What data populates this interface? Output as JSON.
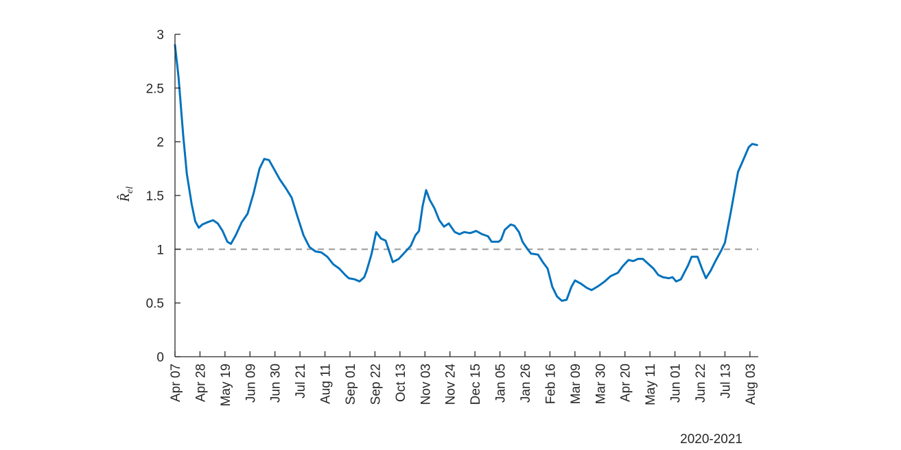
{
  "chart_data": {
    "type": "line",
    "ylabel": "R̂el",
    "year_caption": "2020-2021",
    "ylim": [
      0,
      3
    ],
    "yticks": [
      0,
      0.5,
      1,
      1.5,
      2,
      2.5,
      3
    ],
    "ytick_labels": [
      "0",
      "0.5",
      "1",
      "1.5",
      "2",
      "2.5",
      "3"
    ],
    "xlim": [
      "2020-04-07",
      "2021-08-10"
    ],
    "xticks": [
      "2020-04-07",
      "2020-04-28",
      "2020-05-19",
      "2020-06-09",
      "2020-06-30",
      "2020-07-21",
      "2020-08-11",
      "2020-09-01",
      "2020-09-22",
      "2020-10-13",
      "2020-11-03",
      "2020-11-24",
      "2020-12-15",
      "2021-01-05",
      "2021-01-26",
      "2021-02-16",
      "2021-03-09",
      "2021-03-30",
      "2021-04-20",
      "2021-05-11",
      "2021-06-01",
      "2021-06-22",
      "2021-07-13",
      "2021-08-03"
    ],
    "xtick_labels": [
      "Apr 07",
      "Apr 28",
      "May 19",
      "Jun 09",
      "Jun 30",
      "Jul 21",
      "Aug 11",
      "Sep 01",
      "Sep 22",
      "Oct 13",
      "Nov 03",
      "Nov 24",
      "Dec 15",
      "Jan 05",
      "Jan 26",
      "Feb 16",
      "Mar 09",
      "Mar 30",
      "Apr 20",
      "May 11",
      "Jun 01",
      "Jun 22",
      "Jul 13",
      "Aug 03"
    ],
    "grid": false,
    "reference_line": {
      "y": 1,
      "style": "dashed",
      "color": "#999999"
    },
    "series": [
      {
        "color": "#0072BD",
        "points": [
          [
            "2020-04-07",
            2.9
          ],
          [
            "2020-04-10",
            2.6
          ],
          [
            "2020-04-14",
            2.05
          ],
          [
            "2020-04-17",
            1.7
          ],
          [
            "2020-04-21",
            1.42
          ],
          [
            "2020-04-24",
            1.26
          ],
          [
            "2020-04-27",
            1.2
          ],
          [
            "2020-04-30",
            1.23
          ],
          [
            "2020-05-04",
            1.25
          ],
          [
            "2020-05-09",
            1.27
          ],
          [
            "2020-05-13",
            1.24
          ],
          [
            "2020-05-17",
            1.17
          ],
          [
            "2020-05-21",
            1.07
          ],
          [
            "2020-05-24",
            1.05
          ],
          [
            "2020-05-28",
            1.13
          ],
          [
            "2020-06-02",
            1.25
          ],
          [
            "2020-06-07",
            1.33
          ],
          [
            "2020-06-12",
            1.52
          ],
          [
            "2020-06-17",
            1.75
          ],
          [
            "2020-06-21",
            1.84
          ],
          [
            "2020-06-25",
            1.83
          ],
          [
            "2020-06-29",
            1.75
          ],
          [
            "2020-07-04",
            1.65
          ],
          [
            "2020-07-09",
            1.57
          ],
          [
            "2020-07-14",
            1.48
          ],
          [
            "2020-07-19",
            1.3
          ],
          [
            "2020-07-24",
            1.13
          ],
          [
            "2020-07-29",
            1.02
          ],
          [
            "2020-08-03",
            0.98
          ],
          [
            "2020-08-08",
            0.97
          ],
          [
            "2020-08-13",
            0.93
          ],
          [
            "2020-08-18",
            0.86
          ],
          [
            "2020-08-23",
            0.82
          ],
          [
            "2020-08-28",
            0.76
          ],
          [
            "2020-08-31",
            0.73
          ],
          [
            "2020-09-05",
            0.72
          ],
          [
            "2020-09-09",
            0.7
          ],
          [
            "2020-09-13",
            0.74
          ],
          [
            "2020-09-15",
            0.8
          ],
          [
            "2020-09-19",
            0.95
          ],
          [
            "2020-09-23",
            1.16
          ],
          [
            "2020-09-27",
            1.1
          ],
          [
            "2020-10-01",
            1.08
          ],
          [
            "2020-10-07",
            0.88
          ],
          [
            "2020-10-12",
            0.91
          ],
          [
            "2020-10-17",
            0.97
          ],
          [
            "2020-10-22",
            1.03
          ],
          [
            "2020-10-26",
            1.13
          ],
          [
            "2020-10-29",
            1.17
          ],
          [
            "2020-11-01",
            1.4
          ],
          [
            "2020-11-04",
            1.55
          ],
          [
            "2020-11-07",
            1.46
          ],
          [
            "2020-11-11",
            1.38
          ],
          [
            "2020-11-15",
            1.27
          ],
          [
            "2020-11-19",
            1.21
          ],
          [
            "2020-11-23",
            1.24
          ],
          [
            "2020-11-28",
            1.16
          ],
          [
            "2020-12-02",
            1.14
          ],
          [
            "2020-12-06",
            1.16
          ],
          [
            "2020-12-11",
            1.15
          ],
          [
            "2020-12-16",
            1.17
          ],
          [
            "2020-12-21",
            1.14
          ],
          [
            "2020-12-26",
            1.12
          ],
          [
            "2020-12-29",
            1.07
          ],
          [
            "2021-01-04",
            1.07
          ],
          [
            "2021-01-06",
            1.09
          ],
          [
            "2021-01-09",
            1.18
          ],
          [
            "2021-01-14",
            1.23
          ],
          [
            "2021-01-17",
            1.22
          ],
          [
            "2021-01-21",
            1.16
          ],
          [
            "2021-01-24",
            1.07
          ],
          [
            "2021-01-27",
            1.02
          ],
          [
            "2021-01-31",
            0.96
          ],
          [
            "2021-02-06",
            0.95
          ],
          [
            "2021-02-10",
            0.88
          ],
          [
            "2021-02-14",
            0.82
          ],
          [
            "2021-02-18",
            0.65
          ],
          [
            "2021-02-22",
            0.56
          ],
          [
            "2021-02-26",
            0.52
          ],
          [
            "2021-03-02",
            0.53
          ],
          [
            "2021-03-06",
            0.65
          ],
          [
            "2021-03-09",
            0.71
          ],
          [
            "2021-03-14",
            0.68
          ],
          [
            "2021-03-19",
            0.64
          ],
          [
            "2021-03-23",
            0.62
          ],
          [
            "2021-03-29",
            0.66
          ],
          [
            "2021-04-03",
            0.7
          ],
          [
            "2021-04-08",
            0.75
          ],
          [
            "2021-04-14",
            0.78
          ],
          [
            "2021-04-18",
            0.84
          ],
          [
            "2021-04-23",
            0.9
          ],
          [
            "2021-04-27",
            0.89
          ],
          [
            "2021-05-01",
            0.91
          ],
          [
            "2021-05-05",
            0.91
          ],
          [
            "2021-05-09",
            0.87
          ],
          [
            "2021-05-14",
            0.82
          ],
          [
            "2021-05-18",
            0.76
          ],
          [
            "2021-05-22",
            0.74
          ],
          [
            "2021-05-27",
            0.73
          ],
          [
            "2021-05-30",
            0.74
          ],
          [
            "2021-06-02",
            0.7
          ],
          [
            "2021-06-06",
            0.72
          ],
          [
            "2021-06-12",
            0.85
          ],
          [
            "2021-06-15",
            0.93
          ],
          [
            "2021-06-20",
            0.93
          ],
          [
            "2021-06-24",
            0.81
          ],
          [
            "2021-06-27",
            0.73
          ],
          [
            "2021-07-01",
            0.8
          ],
          [
            "2021-07-05",
            0.89
          ],
          [
            "2021-07-10",
            0.99
          ],
          [
            "2021-07-13",
            1.06
          ],
          [
            "2021-07-18",
            1.35
          ],
          [
            "2021-07-24",
            1.72
          ],
          [
            "2021-07-28",
            1.82
          ],
          [
            "2021-08-02",
            1.95
          ],
          [
            "2021-08-05",
            1.98
          ],
          [
            "2021-08-09",
            1.97
          ]
        ]
      }
    ]
  }
}
